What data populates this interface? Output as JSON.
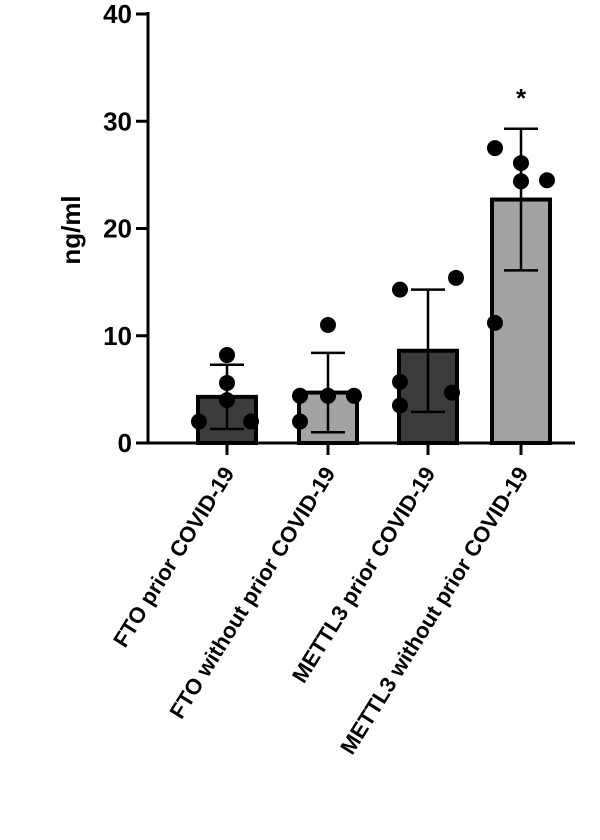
{
  "chart_data": {
    "type": "bar",
    "y_label": "ng/ml",
    "categories": [
      "FTO prior COVID-19",
      "FTO without prior COVID-19",
      "METTL3 prior COVID-19",
      "METTL3 without prior COVID-19"
    ],
    "values": [
      4.3,
      4.7,
      8.6,
      22.7
    ],
    "errors": [
      3.0,
      3.7,
      5.7,
      6.6
    ],
    "colors": [
      "#3c3c3c",
      "#a3a3a3",
      "#3c3c3c",
      "#a3a3a3"
    ],
    "points": [
      [
        8.2,
        5.6,
        2.0,
        4.0,
        2.0
      ],
      [
        11.0,
        4.4,
        2.0,
        4.4,
        4.4
      ],
      [
        14.3,
        15.4,
        5.7,
        3.5,
        4.7
      ],
      [
        27.5,
        26.1,
        24.5,
        24.4,
        11.2
      ]
    ],
    "significance": [
      null,
      null,
      null,
      "*"
    ],
    "ylim": [
      0,
      40
    ],
    "yticks": [
      0,
      10,
      20,
      30,
      40
    ]
  }
}
